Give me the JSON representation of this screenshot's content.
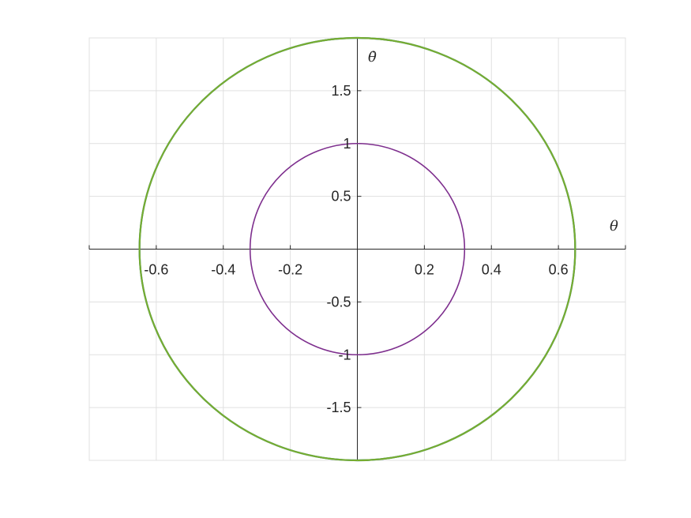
{
  "chart_data": {
    "type": "line",
    "title": "",
    "xlabel": "θ",
    "ylabel": "θ̇",
    "xlim": [
      -0.8,
      0.8
    ],
    "ylim": [
      -2.0,
      2.0
    ],
    "grid": true,
    "x_ticks": [
      -0.6,
      -0.4,
      -0.2,
      0.2,
      0.4,
      0.6
    ],
    "x_tick_labels": [
      "-0.6",
      "-0.4",
      "-0.2",
      "0.2",
      "0.4",
      "0.6"
    ],
    "y_ticks": [
      1.5,
      1,
      0.5,
      -0.5,
      -1,
      -1.5
    ],
    "y_tick_labels": [
      "1.5",
      "1",
      "0.5",
      "-0.5",
      "-1",
      "-1.5"
    ],
    "series": [
      {
        "shape": "ellipse",
        "center": [
          0,
          0
        ],
        "x_radius": 0.65,
        "y_radius": 2.0,
        "color": "#0072BD"
      },
      {
        "shape": "ellipse",
        "center": [
          0,
          0
        ],
        "x_radius": 0.65,
        "y_radius": 2.0,
        "color": "#77AC30"
      },
      {
        "shape": "ellipse",
        "center": [
          0,
          0
        ],
        "x_radius": 0.32,
        "y_radius": 1.0,
        "color": "#7E2F8E"
      }
    ]
  }
}
